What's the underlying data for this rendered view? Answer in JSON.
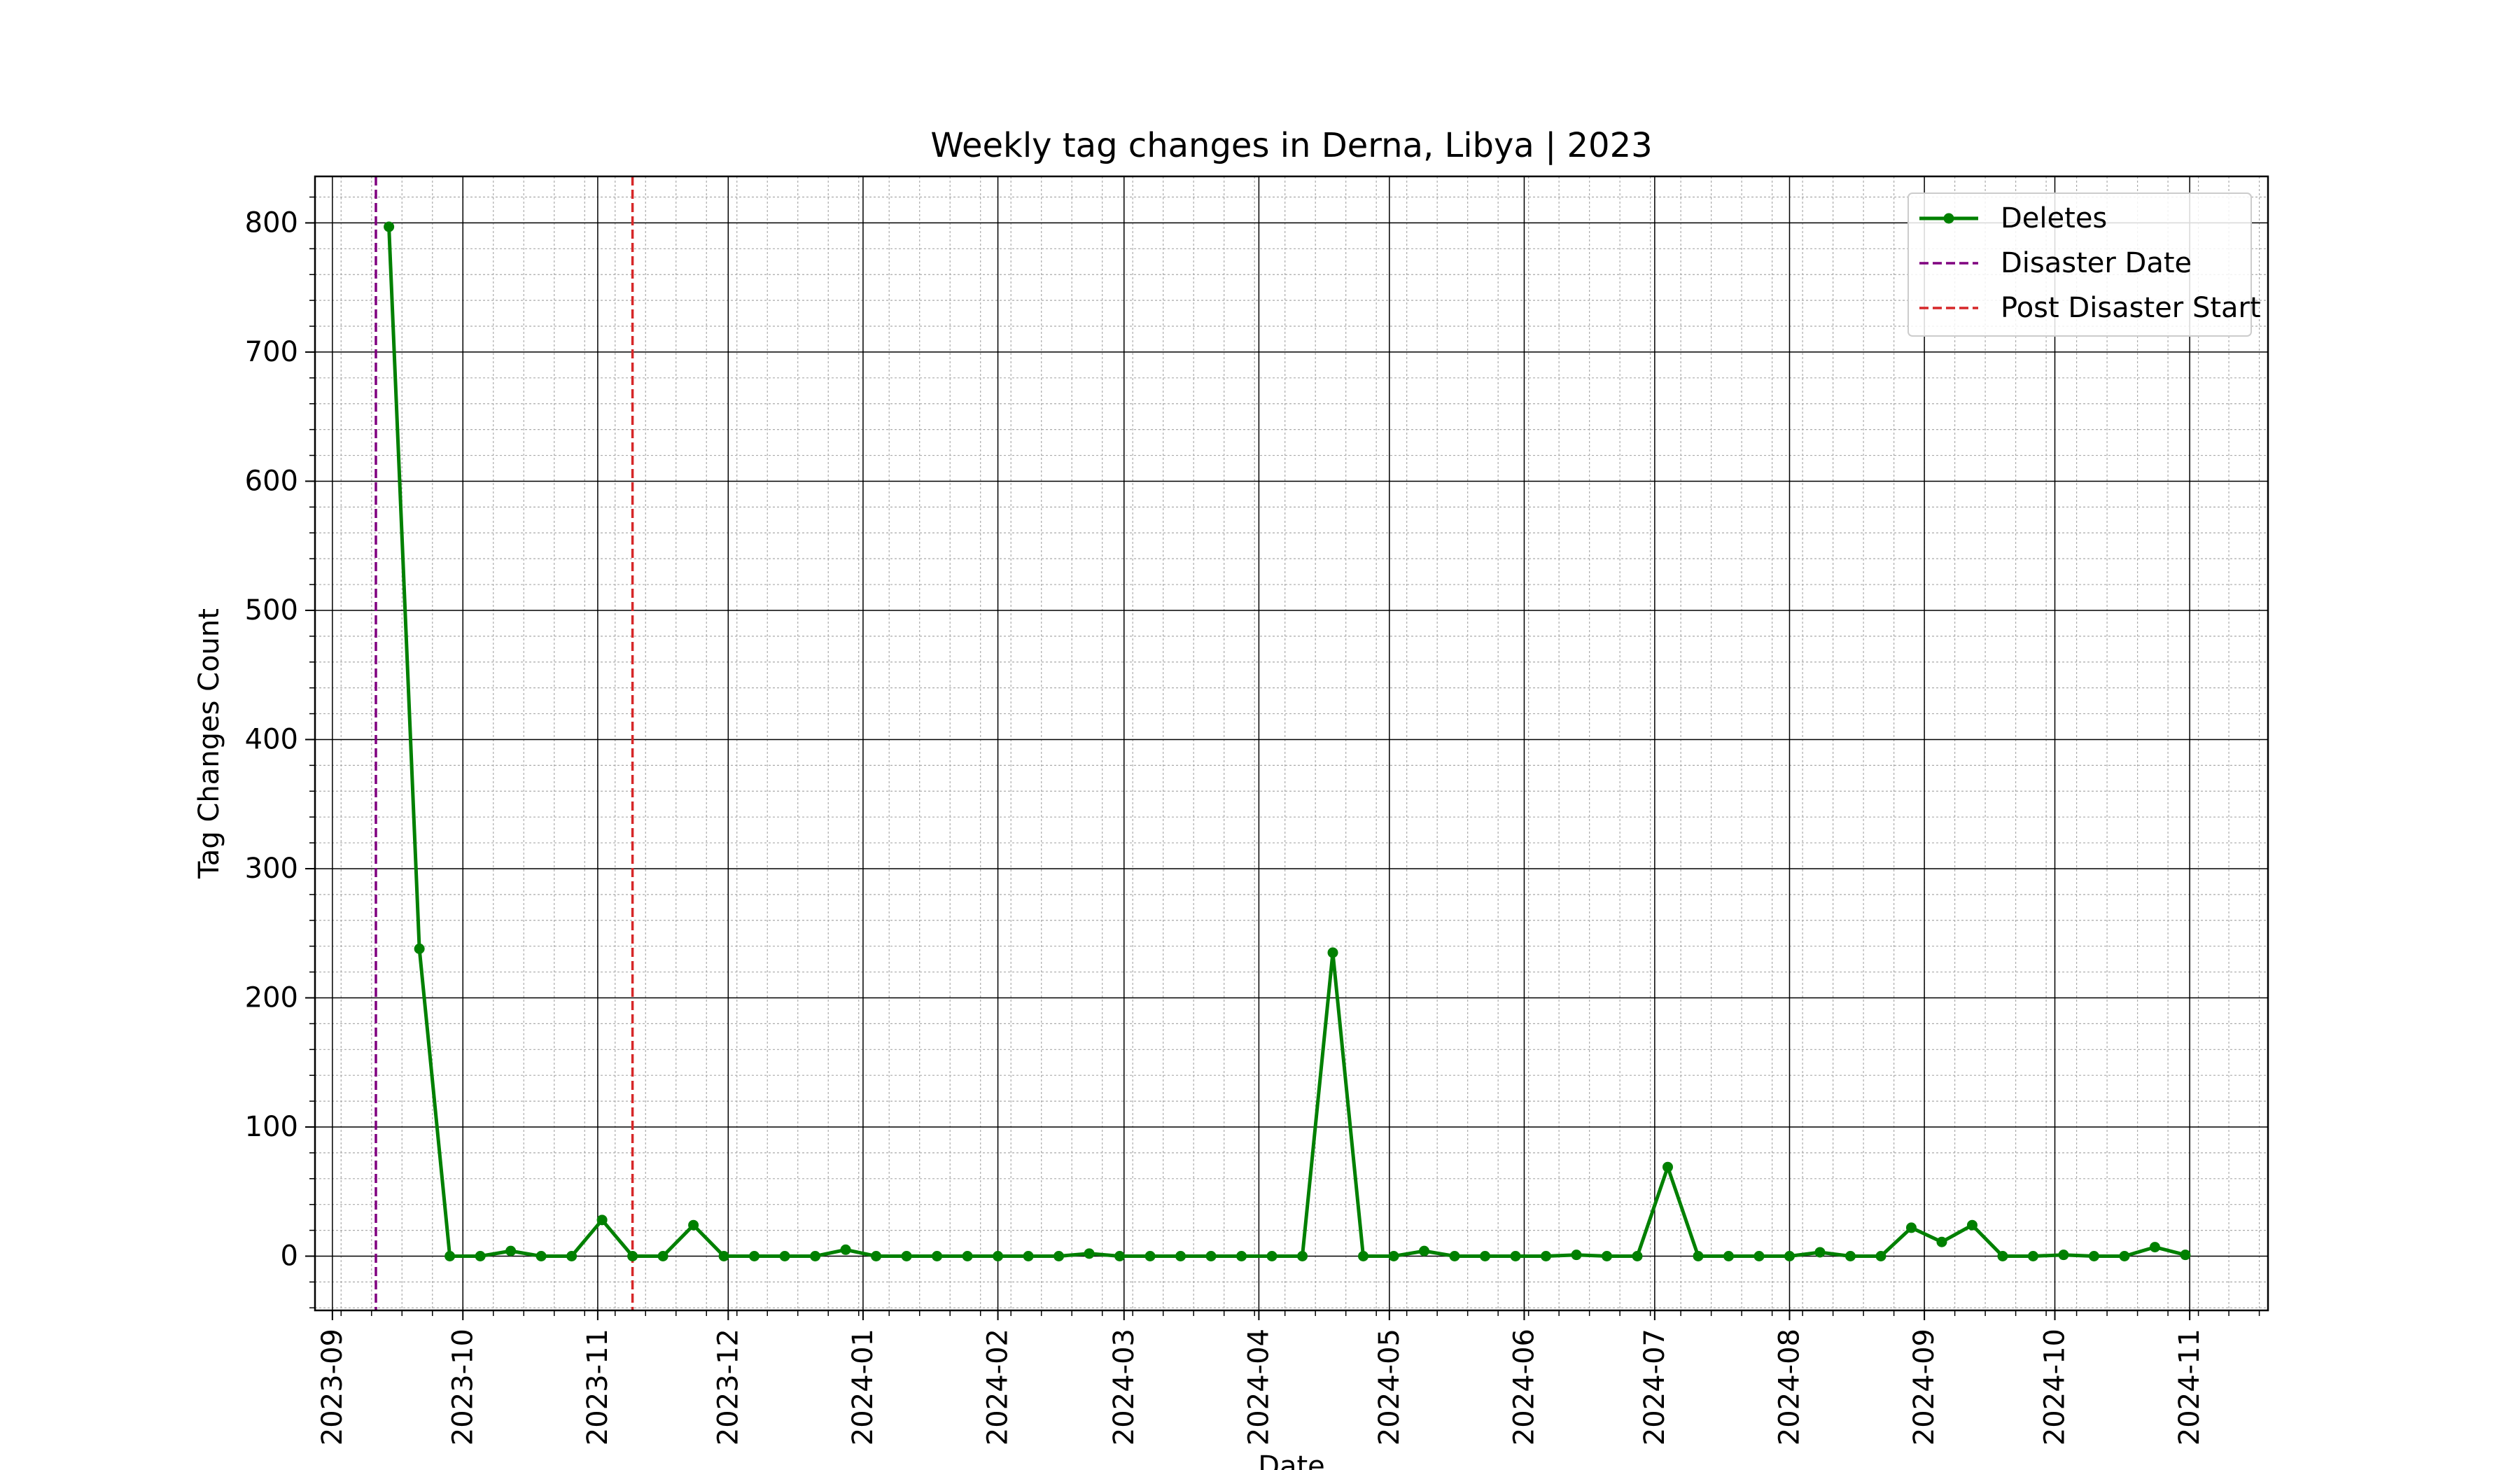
{
  "chart_data": {
    "type": "line",
    "title": "Weekly tag changes in Derna, Libya | 2023",
    "xlabel": "Date",
    "ylabel": "Tag Changes Count",
    "xlim": [
      "2023-08-28",
      "2024-11-19"
    ],
    "ylim": [
      -42,
      836
    ],
    "x_ticks": [
      "2023-09",
      "2023-10",
      "2023-11",
      "2023-12",
      "2024-01",
      "2024-02",
      "2024-03",
      "2024-04",
      "2024-05",
      "2024-06",
      "2024-07",
      "2024-08",
      "2024-09",
      "2024-10",
      "2024-11"
    ],
    "y_ticks": [
      0,
      100,
      200,
      300,
      400,
      500,
      600,
      700,
      800
    ],
    "grid": true,
    "minor_grid": true,
    "legend_position": "top-right",
    "series": [
      {
        "name": "Deletes",
        "color": "#008000",
        "marker": "circle",
        "x": [
          "2023-09-14",
          "2023-09-21",
          "2023-09-28",
          "2023-10-05",
          "2023-10-12",
          "2023-10-19",
          "2023-10-26",
          "2023-11-02",
          "2023-11-09",
          "2023-11-16",
          "2023-11-23",
          "2023-11-30",
          "2023-12-07",
          "2023-12-14",
          "2023-12-21",
          "2023-12-28",
          "2024-01-04",
          "2024-01-11",
          "2024-01-18",
          "2024-01-25",
          "2024-02-01",
          "2024-02-08",
          "2024-02-15",
          "2024-02-22",
          "2024-02-29",
          "2024-03-07",
          "2024-03-14",
          "2024-03-21",
          "2024-03-28",
          "2024-04-04",
          "2024-04-11",
          "2024-04-18",
          "2024-04-25",
          "2024-05-02",
          "2024-05-09",
          "2024-05-16",
          "2024-05-23",
          "2024-05-30",
          "2024-06-06",
          "2024-06-13",
          "2024-06-20",
          "2024-06-27",
          "2024-07-04",
          "2024-07-11",
          "2024-07-18",
          "2024-07-25",
          "2024-08-01",
          "2024-08-08",
          "2024-08-15",
          "2024-08-22",
          "2024-08-29",
          "2024-09-05",
          "2024-09-12",
          "2024-09-19",
          "2024-09-26",
          "2024-10-03",
          "2024-10-10",
          "2024-10-17",
          "2024-10-24",
          "2024-10-31"
        ],
        "values": [
          797,
          238,
          0,
          0,
          4,
          0,
          0,
          28,
          0,
          0,
          24,
          0,
          0,
          0,
          0,
          5,
          0,
          0,
          0,
          0,
          0,
          0,
          0,
          2,
          0,
          0,
          0,
          0,
          0,
          0,
          0,
          235,
          0,
          0,
          4,
          0,
          0,
          0,
          0,
          1,
          0,
          0,
          69,
          0,
          0,
          0,
          0,
          3,
          0,
          0,
          22,
          11,
          24,
          0,
          0,
          1,
          0,
          0,
          7,
          1
        ]
      }
    ],
    "vlines": [
      {
        "name": "Disaster Date",
        "x": "2023-09-11",
        "color": "#800080",
        "style": "dashed"
      },
      {
        "name": "Post Disaster Start",
        "x": "2023-11-09",
        "color": "#d62728",
        "style": "dashed"
      }
    ]
  }
}
